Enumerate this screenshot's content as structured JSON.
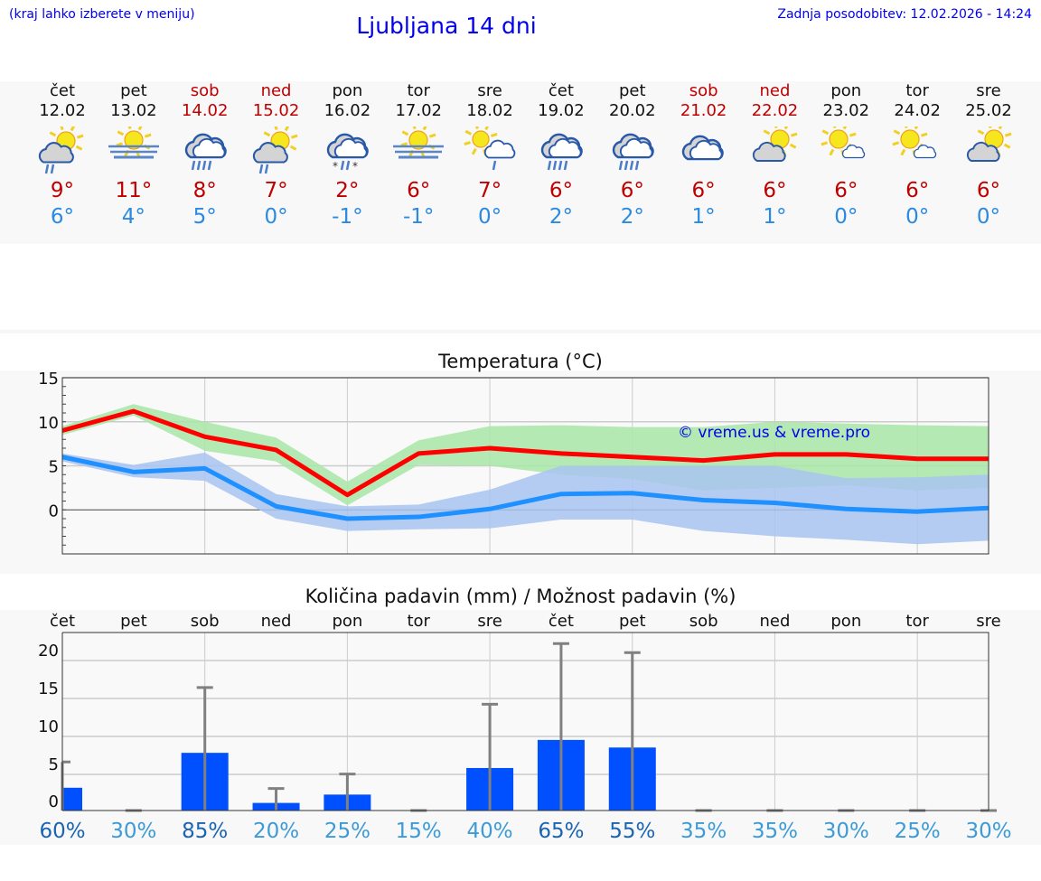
{
  "header": {
    "note": "(kraj lahko izberete v meniju)",
    "title": "Ljubljana 14 dni",
    "updated": "Zadnja posodobitev: 12.02.2026 - 14:24"
  },
  "days": [
    {
      "name": "čet",
      "date": "12.02",
      "weekend": false,
      "icon": "partly-cloudy-rain",
      "hi": "9°",
      "lo": "6°"
    },
    {
      "name": "pet",
      "date": "13.02",
      "weekend": false,
      "icon": "sun-fog",
      "hi": "11°",
      "lo": "4°"
    },
    {
      "name": "sob",
      "date": "14.02",
      "weekend": true,
      "icon": "cloudy-rain",
      "hi": "8°",
      "lo": "5°"
    },
    {
      "name": "ned",
      "date": "15.02",
      "weekend": true,
      "icon": "partly-cloudy-rain",
      "hi": "7°",
      "lo": "0°"
    },
    {
      "name": "pon",
      "date": "16.02",
      "weekend": false,
      "icon": "cloudy-sleet",
      "hi": "2°",
      "lo": "-1°"
    },
    {
      "name": "tor",
      "date": "17.02",
      "weekend": false,
      "icon": "sun-fog",
      "hi": "6°",
      "lo": "-1°"
    },
    {
      "name": "sre",
      "date": "18.02",
      "weekend": false,
      "icon": "sun-cloud-rain",
      "hi": "7°",
      "lo": "0°"
    },
    {
      "name": "čet",
      "date": "19.02",
      "weekend": false,
      "icon": "cloudy-rain",
      "hi": "6°",
      "lo": "2°"
    },
    {
      "name": "pet",
      "date": "20.02",
      "weekend": false,
      "icon": "cloudy-rain",
      "hi": "6°",
      "lo": "2°"
    },
    {
      "name": "sob",
      "date": "21.02",
      "weekend": true,
      "icon": "cloudy",
      "hi": "6°",
      "lo": "1°"
    },
    {
      "name": "ned",
      "date": "22.02",
      "weekend": true,
      "icon": "partly-cloudy",
      "hi": "6°",
      "lo": "1°"
    },
    {
      "name": "pon",
      "date": "23.02",
      "weekend": false,
      "icon": "sun-small-cloud",
      "hi": "6°",
      "lo": "0°"
    },
    {
      "name": "tor",
      "date": "24.02",
      "weekend": false,
      "icon": "sun-small-cloud",
      "hi": "6°",
      "lo": "0°"
    },
    {
      "name": "sre",
      "date": "25.02",
      "weekend": false,
      "icon": "partly-cloudy",
      "hi": "6°",
      "lo": "0°"
    }
  ],
  "colors": {
    "max": "#ff0000",
    "min": "#1e90ff",
    "max_band": "#a8e6a8",
    "min_band": "#a8c4f0",
    "bar": "#0050ff",
    "whisker": "#808080",
    "pct_high": "#1a64b4",
    "pct_low": "#3c9bd7"
  },
  "chart_data": [
    {
      "type": "line",
      "title": "Temperatura (°C)",
      "ylim": [
        -5,
        15
      ],
      "yticks": [
        0,
        5,
        10,
        15
      ],
      "grid": true,
      "watermark": "© vreme.us & vreme.pro",
      "x": [
        "12.02",
        "13.02",
        "14.02",
        "15.02",
        "16.02",
        "17.02",
        "18.02",
        "19.02",
        "20.02",
        "21.02",
        "22.02",
        "23.02",
        "24.02",
        "25.02"
      ],
      "series": [
        {
          "role": "max",
          "values": [
            9.0,
            11.2,
            8.3,
            6.8,
            1.7,
            6.4,
            7.0,
            6.4,
            6.0,
            5.6,
            6.3,
            6.3,
            5.8,
            5.8
          ],
          "band_upper": [
            9.5,
            12.0,
            10.0,
            8.2,
            3.2,
            7.9,
            9.5,
            9.6,
            9.4,
            9.4,
            10.0,
            9.8,
            9.6,
            9.5
          ],
          "band_lower": [
            8.5,
            10.7,
            6.7,
            5.5,
            0.5,
            5.1,
            5.0,
            4.0,
            3.5,
            2.2,
            2.5,
            2.8,
            2.2,
            2.5
          ]
        },
        {
          "role": "min",
          "values": [
            6.0,
            4.3,
            4.7,
            0.4,
            -1.0,
            -0.8,
            0.1,
            1.8,
            1.9,
            1.1,
            0.8,
            0.1,
            -0.2,
            0.2
          ],
          "band_upper": [
            6.4,
            5.1,
            6.5,
            1.8,
            0.4,
            0.6,
            2.3,
            5.0,
            5.0,
            5.0,
            5.0,
            3.6,
            3.7,
            4.0
          ],
          "band_lower": [
            5.5,
            3.7,
            3.3,
            -1.0,
            -2.4,
            -2.2,
            -2.1,
            -1.1,
            -1.1,
            -2.4,
            -3.0,
            -3.4,
            -3.9,
            -3.5
          ]
        }
      ]
    },
    {
      "type": "bar",
      "title": "Količina padavin (mm) / Možnost padavin (%)",
      "ylim": [
        0,
        22
      ],
      "yticks": [
        0,
        5,
        10,
        15,
        20
      ],
      "grid": true,
      "categories": [
        "čet",
        "pet",
        "sob",
        "ned",
        "pon",
        "tor",
        "sre",
        "čet",
        "pet",
        "sob",
        "ned",
        "pon",
        "tor",
        "sre"
      ],
      "values": [
        3.0,
        0,
        7.6,
        1.0,
        2.1,
        0,
        5.6,
        9.3,
        8.3,
        0,
        0,
        0,
        0,
        0
      ],
      "error_upper": [
        6.4,
        0,
        16.2,
        2.9,
        4.8,
        0,
        14.0,
        22.0,
        20.8,
        0,
        0,
        0,
        0,
        0
      ],
      "probability": [
        "60%",
        "30%",
        "85%",
        "20%",
        "25%",
        "15%",
        "40%",
        "65%",
        "55%",
        "35%",
        "35%",
        "30%",
        "25%",
        "30%"
      ]
    }
  ]
}
